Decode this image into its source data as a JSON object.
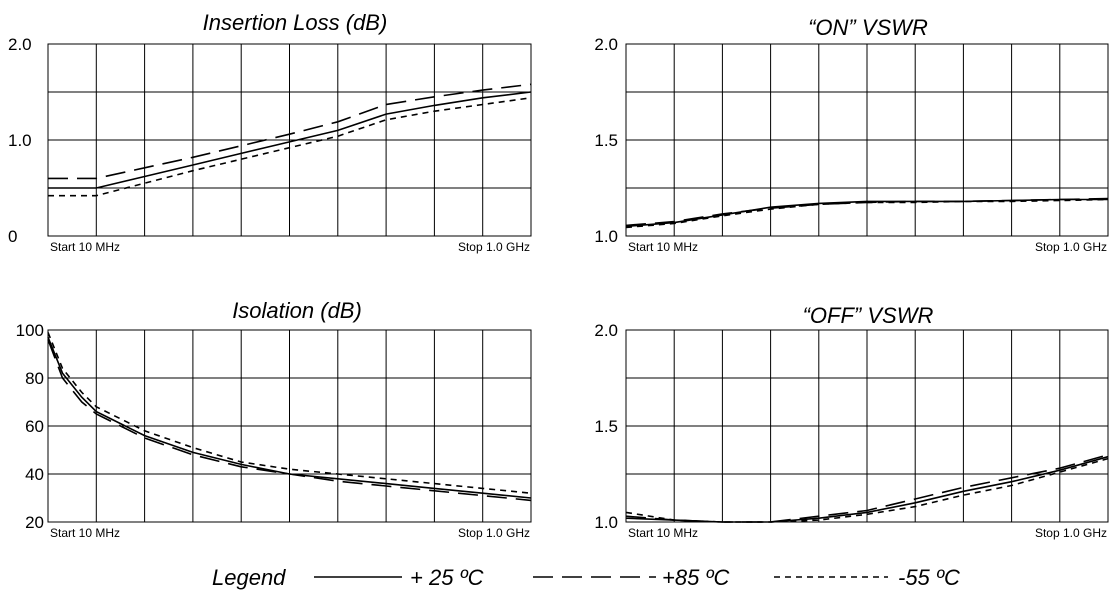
{
  "chart_data": [
    {
      "type": "line",
      "title": "Insertion Loss (dB)",
      "ylim": [
        0,
        2.0
      ],
      "y_ticks": [
        "2.0",
        "1.0",
        "0"
      ],
      "x_start_label": "Start 10 MHz",
      "x_stop_label": "Stop 1.0 GHz",
      "xlim": [
        0,
        10
      ],
      "grid": true,
      "series": [
        {
          "name": "+ 25 ºC",
          "x": [
            0,
            1,
            2,
            3,
            4,
            5,
            6,
            7,
            8,
            9,
            10
          ],
          "values": [
            0.5,
            0.5,
            0.62,
            0.74,
            0.86,
            0.98,
            1.1,
            1.27,
            1.36,
            1.44,
            1.5
          ]
        },
        {
          "name": "+85 ºC",
          "x": [
            0,
            1,
            2,
            3,
            4,
            5,
            6,
            7,
            8,
            9,
            10
          ],
          "values": [
            0.6,
            0.6,
            0.71,
            0.82,
            0.94,
            1.06,
            1.19,
            1.37,
            1.45,
            1.52,
            1.58
          ]
        },
        {
          "name": "-55 ºC",
          "x": [
            0,
            1,
            2,
            3,
            4,
            5,
            6,
            7,
            8,
            9,
            10
          ],
          "values": [
            0.42,
            0.42,
            0.55,
            0.68,
            0.8,
            0.92,
            1.04,
            1.21,
            1.3,
            1.37,
            1.44
          ]
        }
      ]
    },
    {
      "type": "line",
      "title": "“ON” VSWR",
      "ylim": [
        1.0,
        2.0
      ],
      "y_ticks": [
        "2.0",
        "1.5",
        "1.0"
      ],
      "x_start_label": "Start 10 MHz",
      "x_stop_label": "Stop 1.0 GHz",
      "xlim": [
        0,
        10
      ],
      "grid": true,
      "series": [
        {
          "name": "+ 25 ºC",
          "x": [
            0,
            1,
            2,
            3,
            4,
            5,
            6,
            7,
            8,
            9,
            10
          ],
          "values": [
            1.05,
            1.07,
            1.11,
            1.15,
            1.17,
            1.18,
            1.18,
            1.18,
            1.185,
            1.19,
            1.19
          ]
        },
        {
          "name": "+85 ºC",
          "x": [
            0,
            1,
            2,
            3,
            4,
            5,
            6,
            7,
            8,
            9,
            10
          ],
          "values": [
            1.055,
            1.075,
            1.115,
            1.145,
            1.165,
            1.175,
            1.18,
            1.18,
            1.185,
            1.19,
            1.195
          ]
        },
        {
          "name": "-55 ºC",
          "x": [
            0,
            1,
            2,
            3,
            4,
            5,
            6,
            7,
            8,
            9,
            10
          ],
          "values": [
            1.045,
            1.065,
            1.105,
            1.14,
            1.165,
            1.175,
            1.175,
            1.18,
            1.18,
            1.185,
            1.19
          ]
        }
      ]
    },
    {
      "type": "line",
      "title": "Isolation (dB)",
      "ylim": [
        20,
        100
      ],
      "y_ticks": [
        "100",
        "80",
        "60",
        "40",
        "20"
      ],
      "x_start_label": "Start 10 MHz",
      "x_stop_label": "Stop 1.0 GHz",
      "xlim": [
        0,
        10
      ],
      "grid": true,
      "series": [
        {
          "name": "+ 25 ºC",
          "x": [
            0,
            0.3,
            0.7,
            1,
            1.5,
            2,
            3,
            4,
            5,
            6,
            7,
            8,
            9,
            10
          ],
          "values": [
            97,
            82,
            72,
            66,
            61,
            56,
            49,
            44,
            40,
            38,
            36,
            34,
            32,
            30
          ]
        },
        {
          "name": "+85 ºC",
          "x": [
            0,
            0.3,
            0.7,
            1,
            1.5,
            2,
            3,
            4,
            5,
            6,
            7,
            8,
            9,
            10
          ],
          "values": [
            96,
            80,
            70,
            65,
            60,
            55,
            48,
            43,
            40,
            37,
            35,
            33,
            31,
            29
          ]
        },
        {
          "name": "-55 ºC",
          "x": [
            0,
            0.3,
            0.7,
            1,
            1.5,
            2,
            3,
            4,
            5,
            6,
            7,
            8,
            9,
            10
          ],
          "values": [
            99,
            84,
            74,
            68,
            63,
            58,
            51,
            45,
            42,
            40,
            38,
            36,
            34,
            32
          ]
        }
      ]
    },
    {
      "type": "line",
      "title": "“OFF” VSWR",
      "ylim": [
        1.0,
        2.0
      ],
      "y_ticks": [
        "2.0",
        "1.5",
        "1.0"
      ],
      "x_start_label": "Start 10 MHz",
      "x_stop_label": "Stop 1.0 GHz",
      "xlim": [
        0,
        10
      ],
      "grid": true,
      "series": [
        {
          "name": "+ 25 ºC",
          "x": [
            0,
            1,
            2,
            3,
            4,
            5,
            6,
            7,
            8,
            9,
            10
          ],
          "values": [
            1.02,
            1.01,
            1.0,
            1.0,
            1.02,
            1.05,
            1.1,
            1.16,
            1.21,
            1.27,
            1.34
          ]
        },
        {
          "name": "+85 ºC",
          "x": [
            0,
            1,
            2,
            3,
            4,
            5,
            6,
            7,
            8,
            9,
            10
          ],
          "values": [
            1.03,
            1.01,
            1.0,
            1.0,
            1.03,
            1.06,
            1.12,
            1.18,
            1.23,
            1.28,
            1.35
          ]
        },
        {
          "name": "-55 ºC",
          "x": [
            0,
            1,
            2,
            3,
            4,
            5,
            6,
            7,
            8,
            9,
            10
          ],
          "values": [
            1.05,
            1.01,
            1.0,
            1.0,
            1.01,
            1.04,
            1.08,
            1.14,
            1.19,
            1.26,
            1.33
          ]
        }
      ]
    }
  ],
  "legend": {
    "label": "Legend",
    "entries": [
      {
        "text": "+ 25 ºC",
        "style": "solid"
      },
      {
        "text": "+85 ºC",
        "style": "long-dash"
      },
      {
        "text": "-55 ºC",
        "style": "short-dash"
      }
    ]
  }
}
